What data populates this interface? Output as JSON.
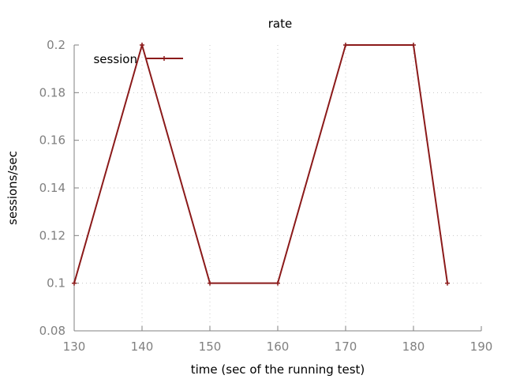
{
  "chart_data": {
    "type": "line",
    "title": "rate",
    "xlabel": "time (sec of the running test)",
    "ylabel": "sessions/sec",
    "xlim": [
      130,
      190
    ],
    "ylim": [
      0.08,
      0.2
    ],
    "xticks": [
      130,
      140,
      150,
      160,
      170,
      180,
      190
    ],
    "yticks": [
      0.08,
      0.1,
      0.12,
      0.14,
      0.16,
      0.18,
      0.2
    ],
    "xtick_labels": [
      "130",
      "140",
      "150",
      "160",
      "170",
      "180",
      "190"
    ],
    "ytick_labels": [
      "0.08",
      "0.1",
      "0.12",
      "0.14",
      "0.16",
      "0.18",
      "0.2"
    ],
    "grid": true,
    "legend_position": "top-left",
    "series": [
      {
        "name": "session",
        "color": "#8b1a1a",
        "marker": "plus",
        "x": [
          130,
          140,
          150,
          160,
          170,
          180,
          185
        ],
        "y": [
          0.1,
          0.2,
          0.1,
          0.1,
          0.2,
          0.2,
          0.1
        ]
      }
    ]
  }
}
